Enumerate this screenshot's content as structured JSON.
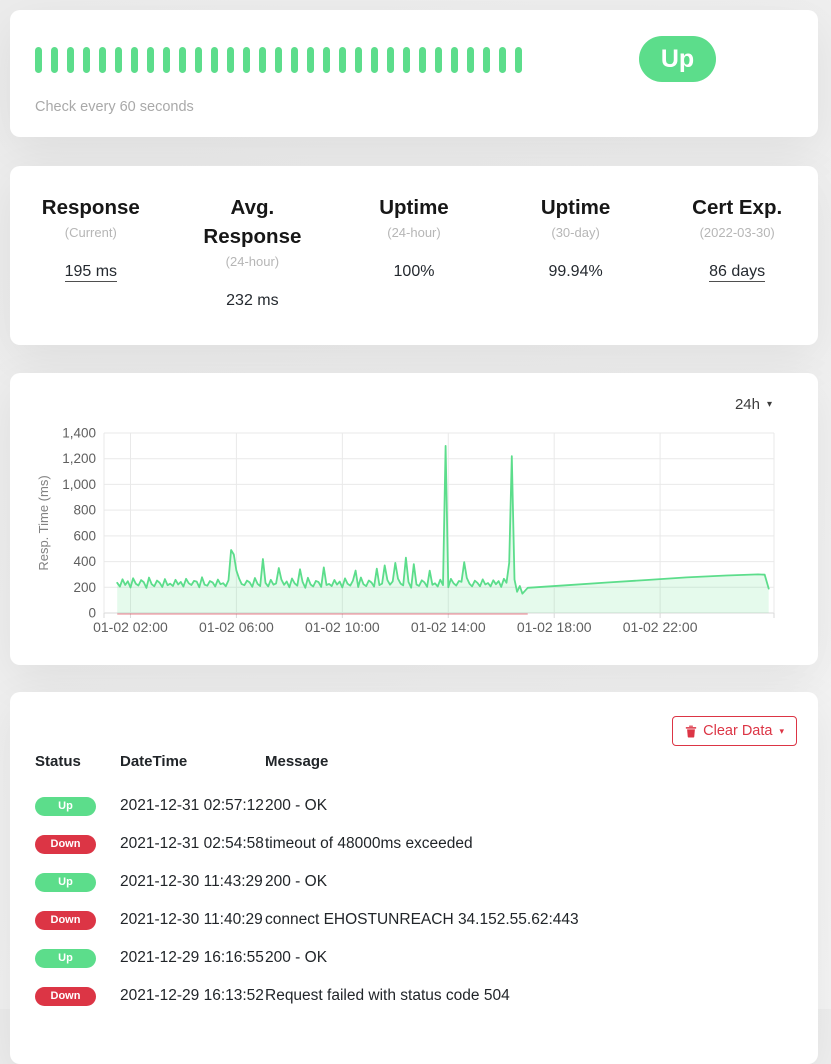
{
  "colors": {
    "up_green": "#5cdd8b",
    "down_red": "#dc3545",
    "chart_fill": "rgba(92,221,139,0.16)",
    "grid_line": "#e9e9e9",
    "axis_line": "#d9d9d9",
    "axis_text": "#5f5f5f",
    "down_baseline": "rgba(220,53,69,0.5)"
  },
  "monitor": {
    "status_label": "Up",
    "check_interval_text": "Check every 60 seconds",
    "heartbeat_count": 31
  },
  "stats": [
    {
      "title": "Response",
      "subtitle": "(Current)",
      "value": "195 ms"
    },
    {
      "title": "Avg. Response",
      "subtitle": "(24-hour)",
      "value": "232 ms"
    },
    {
      "title": "Uptime",
      "subtitle": "(24-hour)",
      "value": "100%"
    },
    {
      "title": "Uptime",
      "subtitle": "(30-day)",
      "value": "99.94%"
    },
    {
      "title": "Cert Exp.",
      "subtitle": "(2022-03-30)",
      "value": "86 days"
    }
  ],
  "chart": {
    "period_label": "24h"
  },
  "chart_data": {
    "type": "line",
    "title": "",
    "xlabel": "",
    "ylabel": "Resp. Time (ms)",
    "grid": true,
    "legend": "none",
    "ylim": [
      0,
      1400
    ],
    "y_ticks": [
      0,
      200,
      400,
      600,
      800,
      1000,
      1200,
      1400
    ],
    "y_tick_labels": [
      "0",
      "200",
      "400",
      "600",
      "800",
      "1,000",
      "1,200",
      "1,400"
    ],
    "xlim": [
      1.0,
      26.3
    ],
    "x_ticks": [
      2,
      6,
      10,
      14,
      18,
      22
    ],
    "x_tick_labels": [
      "01-02 02:00",
      "01-02 06:00",
      "01-02 10:00",
      "01-02 14:00",
      "01-02 18:00",
      "01-02 22:00"
    ],
    "series": [
      {
        "name": "Resp. Time (ms)",
        "units": "ms",
        "dense": {
          "t_start": 1.5,
          "t_step": 0.1,
          "values": [
            235,
            205,
            262,
            218,
            247,
            198,
            270,
            228,
            214,
            256,
            240,
            195,
            275,
            224,
            208,
            252,
            236,
            202,
            264,
            216,
            228,
            210,
            258,
            222,
            242,
            205,
            266,
            232,
            218,
            250,
            244,
            200,
            278,
            220,
            212,
            248,
            238,
            206,
            260,
            224,
            232,
            208,
            255,
            490,
            455,
            330,
            268,
            225,
            216,
            252,
            238,
            204,
            272,
            226,
            210,
            420,
            234,
            207,
            258,
            220,
            230,
            350,
            260,
            219,
            245,
            200,
            268,
            230,
            212,
            340,
            242,
            196,
            274,
            222,
            206,
            250,
            240,
            203,
            355,
            218,
            226,
            209,
            257,
            221,
            244,
            199,
            269,
            227,
            213,
            251,
            330,
            202,
            276,
            223,
            209,
            253,
            237,
            205,
            345,
            217,
            229,
            370,
            256,
            220,
            246,
            390,
            267,
            229,
            215,
            430,
            241,
            197,
            380,
            221,
            211,
            254,
            239,
            204,
            330,
            219,
            231,
            206,
            259,
            217,
            1300,
            201,
            265,
            231,
            213,
            249,
            243,
            395,
            273,
            227,
            207,
            251,
            235,
            208,
            261,
            222,
            233,
            207,
            254,
            223,
            248,
            203,
            266,
            235,
            390,
            1220,
            260,
            165,
            210,
            150
          ]
        },
        "tail": [
          [
            17.0,
            196
          ],
          [
            18.5,
            216
          ],
          [
            20.0,
            237
          ],
          [
            21.5,
            257
          ],
          [
            23.0,
            277
          ],
          [
            24.5,
            292
          ],
          [
            25.7,
            300
          ],
          [
            25.95,
            298
          ],
          [
            26.1,
            190
          ]
        ]
      }
    ],
    "down_baseline": {
      "from": 1.5,
      "to": 17.0,
      "value": 0
    }
  },
  "events": {
    "clear_button_label": "Clear Data",
    "headers": [
      "Status",
      "DateTime",
      "Message"
    ],
    "rows": [
      {
        "status": "Up",
        "datetime": "2021-12-31 02:57:12",
        "message": "200 - OK"
      },
      {
        "status": "Down",
        "datetime": "2021-12-31 02:54:58",
        "message": "timeout of 48000ms exceeded"
      },
      {
        "status": "Up",
        "datetime": "2021-12-30 11:43:29",
        "message": "200 - OK"
      },
      {
        "status": "Down",
        "datetime": "2021-12-30 11:40:29",
        "message": "connect EHOSTUNREACH 34.152.55.62:443"
      },
      {
        "status": "Up",
        "datetime": "2021-12-29 16:16:55",
        "message": "200 - OK"
      },
      {
        "status": "Down",
        "datetime": "2021-12-29 16:13:52",
        "message": "Request failed with status code 504"
      }
    ]
  }
}
